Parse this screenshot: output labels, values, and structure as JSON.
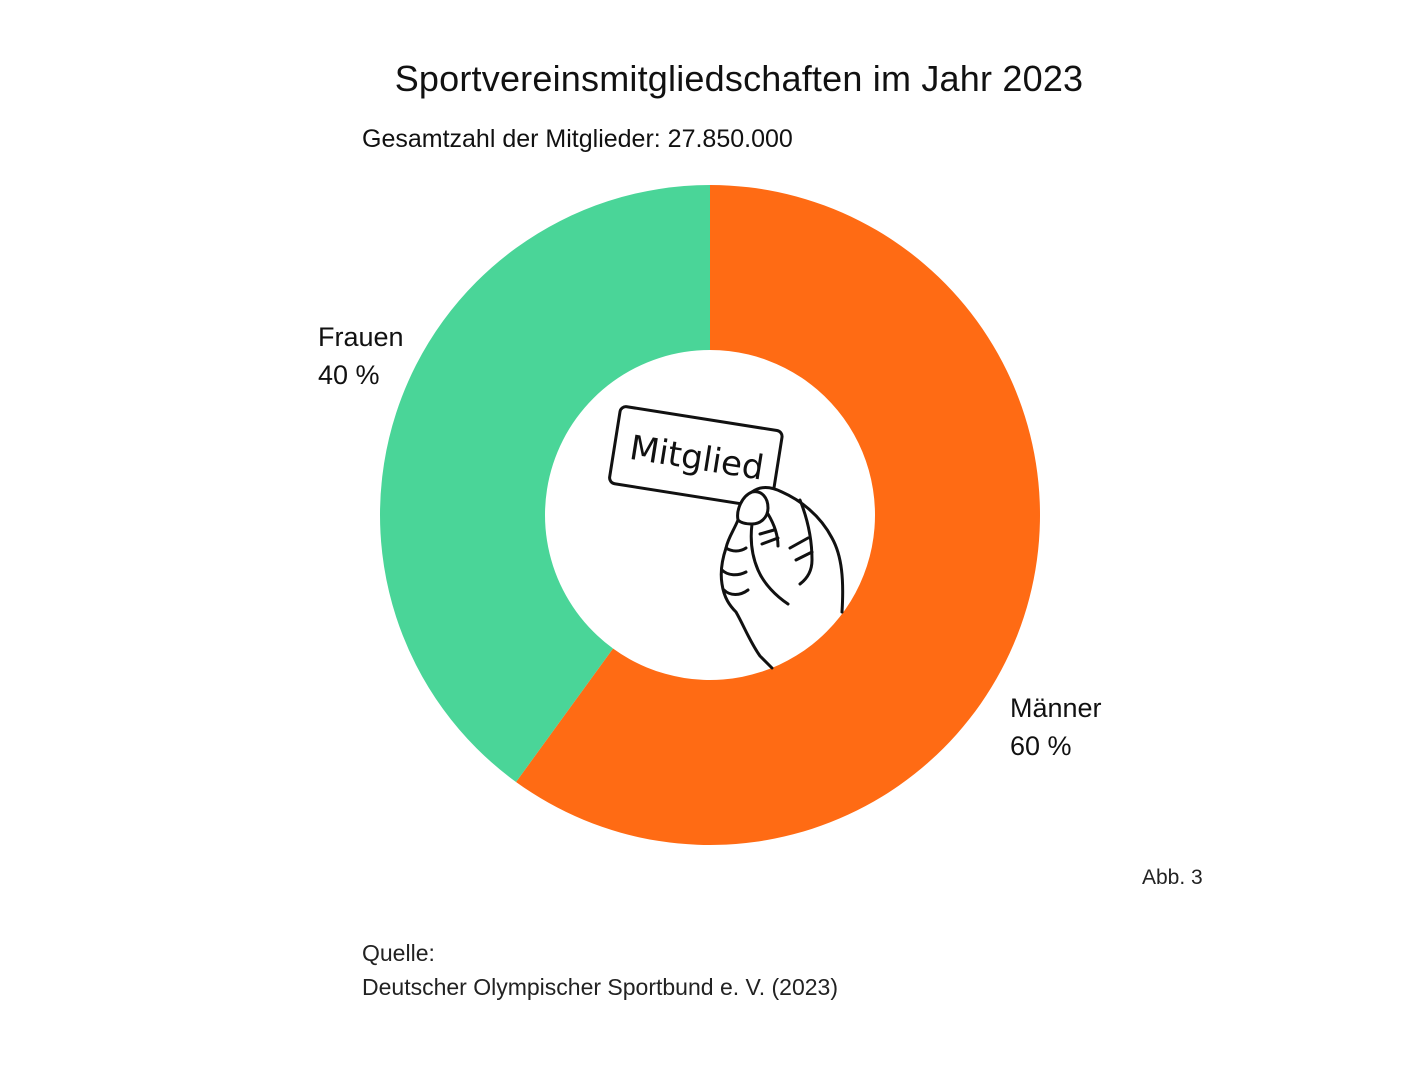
{
  "chart_data": {
    "type": "pie",
    "variant": "donut",
    "title": "Sportvereinsmitgliedschaften im Jahr 2023",
    "subtitle": "Gesamtzahl der Mitglieder: 27.850.000",
    "slices": [
      {
        "name": "Frauen",
        "value": 40,
        "label": "40 %",
        "color": "#4AD598"
      },
      {
        "name": "Männer",
        "value": 60,
        "label": "60 %",
        "color": "#FF6B14"
      }
    ],
    "center_illustration": {
      "icon": "hand-holding-membership-card-icon",
      "card_text": "Mitglied"
    }
  },
  "figure_number": "Abb. 3",
  "source": {
    "heading": "Quelle:",
    "text": "Deutscher Olympischer Sportbund e. V. (2023)"
  }
}
